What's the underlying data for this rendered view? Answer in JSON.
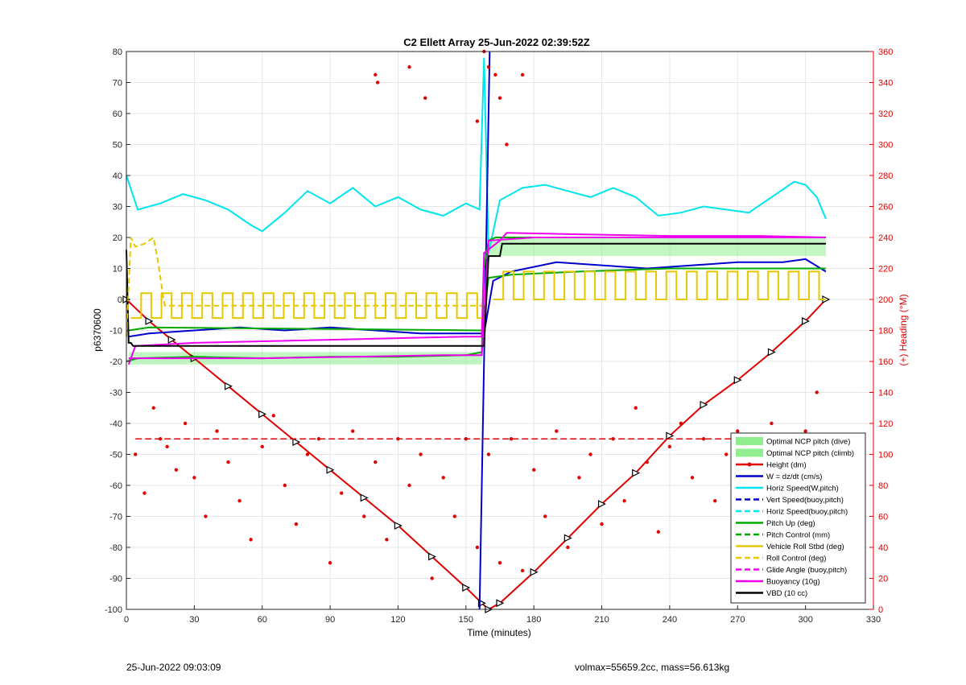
{
  "chart_data": {
    "type": "line",
    "title": "C2 Ellett Array 25-Jun-2022 02:39:52Z",
    "xlabel": "Time (minutes)",
    "ylabel_left": "p6370600",
    "ylabel_right": "(+) Heading (°M)",
    "xlim": [
      0,
      330
    ],
    "ylim_left": [
      -100,
      80
    ],
    "ylim_right": [
      0,
      360
    ],
    "xticks": [
      0,
      30,
      60,
      90,
      120,
      150,
      180,
      210,
      240,
      270,
      300,
      330
    ],
    "yticks_left": [
      -100,
      -90,
      -80,
      -70,
      -60,
      -50,
      -40,
      -30,
      -20,
      -10,
      0,
      10,
      20,
      30,
      40,
      50,
      60,
      70,
      80
    ],
    "yticks_right": [
      0,
      20,
      40,
      60,
      80,
      100,
      120,
      140,
      160,
      180,
      200,
      220,
      240,
      260,
      280,
      300,
      320,
      340,
      360
    ],
    "grid": true,
    "legend_position": "bottom-right",
    "legend": [
      {
        "label": "Optimal NCP pitch (dive)",
        "color": "#90ee90",
        "style": "patch"
      },
      {
        "label": "Optimal NCP pitch (climb)",
        "color": "#90ee90",
        "style": "patch"
      },
      {
        "label": "Height (dm)",
        "color": "#e00000",
        "style": "solid-marker"
      },
      {
        "label": "W = dz/dt (cm/s)",
        "color": "#0000cc",
        "style": "solid"
      },
      {
        "label": "Horiz Speed(W,pitch)",
        "color": "#00e5ee",
        "style": "solid"
      },
      {
        "label": "Vert Speed(buoy,pitch)",
        "color": "#0000cc",
        "style": "dashed"
      },
      {
        "label": "Horiz Speed(buoy,pitch)",
        "color": "#00e5ee",
        "style": "dashed"
      },
      {
        "label": "Pitch Up (deg)",
        "color": "#00aa00",
        "style": "solid"
      },
      {
        "label": "Pitch Control (mm)",
        "color": "#00aa00",
        "style": "dashed"
      },
      {
        "label": "Vehicle Roll Stbd (deg)",
        "color": "#e6c800",
        "style": "solid"
      },
      {
        "label": "Roll Control (deg)",
        "color": "#e6c800",
        "style": "dashed"
      },
      {
        "label": "Glide Angle (buoy,pitch)",
        "color": "#ee00ee",
        "style": "dashed"
      },
      {
        "label": "Buoyancy (10g)",
        "color": "#ee00ee",
        "style": "solid"
      },
      {
        "label": "VBD (10 cc)",
        "color": "#000000",
        "style": "solid"
      }
    ],
    "series": [
      {
        "name": "Height (dm)",
        "color": "#e00000",
        "x": [
          0,
          10,
          20,
          30,
          45,
          60,
          75,
          90,
          105,
          120,
          135,
          150,
          157,
          160,
          165,
          180,
          195,
          210,
          225,
          240,
          255,
          270,
          285,
          300,
          309
        ],
        "y": [
          0,
          -7,
          -13,
          -19,
          -28,
          -37,
          -46,
          -55,
          -64,
          -73,
          -83,
          -93,
          -98,
          -100,
          -98,
          -88,
          -77,
          -66,
          -56,
          -44,
          -34,
          -26,
          -17,
          -7,
          0
        ]
      },
      {
        "name": "W = dz/dt (cm/s)",
        "color": "#0000cc",
        "x": [
          1,
          10,
          30,
          50,
          70,
          90,
          110,
          130,
          150,
          158,
          162,
          170,
          190,
          210,
          230,
          250,
          270,
          290,
          300,
          309
        ],
        "y": [
          -12,
          -11,
          -10,
          -9,
          -10,
          -9,
          -10,
          -11,
          -11,
          -11,
          6,
          9,
          12,
          11,
          10,
          11,
          12,
          12,
          13,
          9
        ]
      },
      {
        "name": "Horiz Speed(W,pitch)",
        "color": "#00e5ee",
        "x": [
          0,
          5,
          15,
          25,
          35,
          45,
          55,
          60,
          70,
          80,
          90,
          100,
          110,
          120,
          130,
          140,
          150,
          156,
          158,
          160,
          165,
          175,
          185,
          195,
          205,
          215,
          225,
          235,
          245,
          255,
          265,
          275,
          285,
          295,
          300,
          305,
          309
        ],
        "y": [
          40,
          29,
          31,
          34,
          32,
          29,
          24,
          22,
          28,
          35,
          31,
          36,
          30,
          33,
          29,
          27,
          31,
          29,
          78,
          15,
          32,
          36,
          37,
          35,
          33,
          36,
          33,
          27,
          28,
          30,
          29,
          28,
          33,
          38,
          37,
          33,
          26
        ]
      },
      {
        "name": "Vert Speed(buoy,pitch)",
        "color": "#0000cc",
        "x": [
          156,
          157,
          158.5,
          159.5,
          160.5
        ],
        "y": [
          -100,
          -60,
          0,
          40,
          80
        ]
      },
      {
        "name": "Pitch Up (deg)",
        "color": "#00aa00",
        "x": [
          0,
          5,
          30,
          60,
          90,
          120,
          150,
          157,
          158,
          160,
          163,
          180,
          210,
          240,
          270,
          300,
          309
        ],
        "y": [
          -20,
          -19,
          -18.5,
          -19,
          -18.5,
          -18.5,
          -18,
          -17,
          10,
          19,
          20,
          20,
          20,
          20,
          20,
          20,
          20
        ]
      },
      {
        "name": "Pitch Control (mm)",
        "color": "#00aa00",
        "x": [
          1,
          10,
          157,
          160,
          170,
          200,
          240,
          290,
          309
        ],
        "y": [
          -10,
          -9,
          -10,
          7,
          8,
          9,
          10,
          10,
          10
        ]
      },
      {
        "name": "Glide Angle (buoy,pitch)",
        "color": "#ee00ee",
        "x": [
          1,
          20,
          60,
          100,
          140,
          157,
          160,
          180,
          230,
          280,
          309
        ],
        "y": [
          -19,
          -19,
          -19,
          -18.5,
          -18,
          -18,
          19,
          20,
          20,
          20,
          20
        ]
      },
      {
        "name": "Buoyancy (10g)",
        "color": "#ee00ee",
        "x": [
          1,
          4,
          30,
          60,
          90,
          120,
          150,
          157,
          158,
          165,
          168,
          200,
          240,
          280,
          309
        ],
        "y": [
          -21,
          -15,
          -14,
          -13.5,
          -13,
          -12.5,
          -12,
          -12,
          15,
          19,
          21.5,
          21,
          20.5,
          20.5,
          20
        ]
      },
      {
        "name": "VBD (10 cc)",
        "color": "#000000",
        "x": [
          0,
          1,
          2,
          3,
          157,
          158,
          160,
          165,
          166,
          175,
          200,
          240,
          280,
          309
        ],
        "y": [
          16,
          -14,
          -14,
          -15,
          -15,
          -15,
          14,
          14,
          18,
          18,
          18,
          18,
          18,
          18
        ]
      },
      {
        "name": "Vehicle Roll Stbd (deg)",
        "color": "#e6c800",
        "style": "square-wave",
        "dive": {
          "x_range": [
            2,
            157
          ],
          "low": -6,
          "high": 2
        },
        "climb": {
          "x_range": [
            162,
            309
          ],
          "low": 0,
          "high": 9
        }
      },
      {
        "name": "Roll Control (deg)",
        "color": "#e6c800",
        "style": "dashed",
        "x": [
          0,
          2,
          4,
          8,
          12,
          14,
          16,
          17,
          20,
          157
        ],
        "y": [
          -12,
          20,
          17,
          18,
          20,
          12,
          2,
          -2,
          -2,
          -2
        ]
      },
      {
        "name": "Heading (°M)",
        "axis": "right",
        "color": "#e00000",
        "style": "dots",
        "x": [
          4,
          8,
          12,
          15,
          18,
          22,
          26,
          30,
          35,
          40,
          45,
          50,
          55,
          60,
          65,
          70,
          75,
          80,
          85,
          90,
          95,
          100,
          105,
          110,
          115,
          120,
          125,
          130,
          135,
          140,
          145,
          150,
          155,
          160,
          165,
          170,
          175,
          180,
          185,
          190,
          195,
          200,
          205,
          210,
          215,
          220,
          225,
          230,
          235,
          240,
          245,
          250,
          255,
          260,
          265,
          270,
          275,
          280,
          285,
          290,
          295,
          300,
          305
        ],
        "y": [
          100,
          75,
          130,
          110,
          105,
          90,
          120,
          85,
          60,
          115,
          95,
          70,
          45,
          105,
          125,
          80,
          55,
          100,
          110,
          30,
          75,
          115,
          60,
          95,
          45,
          110,
          80,
          100,
          20,
          85,
          60,
          110,
          40,
          100,
          30,
          110,
          25,
          90,
          60,
          115,
          40,
          85,
          100,
          55,
          110,
          70,
          130,
          95,
          50,
          105,
          120,
          85,
          110,
          70,
          100,
          115,
          90,
          105,
          120,
          80,
          110,
          115,
          140
        ],
        "mean_line": 110
      },
      {
        "name": "Heading outliers",
        "axis": "right",
        "color": "#e00000",
        "style": "dots",
        "x": [
          110,
          111,
          125,
          132,
          155,
          158,
          160,
          163,
          165,
          168,
          175
        ],
        "y": [
          345,
          340,
          350,
          330,
          315,
          360,
          350,
          345,
          330,
          300,
          345
        ]
      }
    ],
    "ncp_band_dive": [
      -21,
      -17
    ],
    "ncp_band_climb": [
      14,
      20
    ]
  },
  "footer": {
    "left": "25-Jun-2022 09:03:09",
    "right": "volmax=55659.2cc, mass=56.613kg"
  }
}
